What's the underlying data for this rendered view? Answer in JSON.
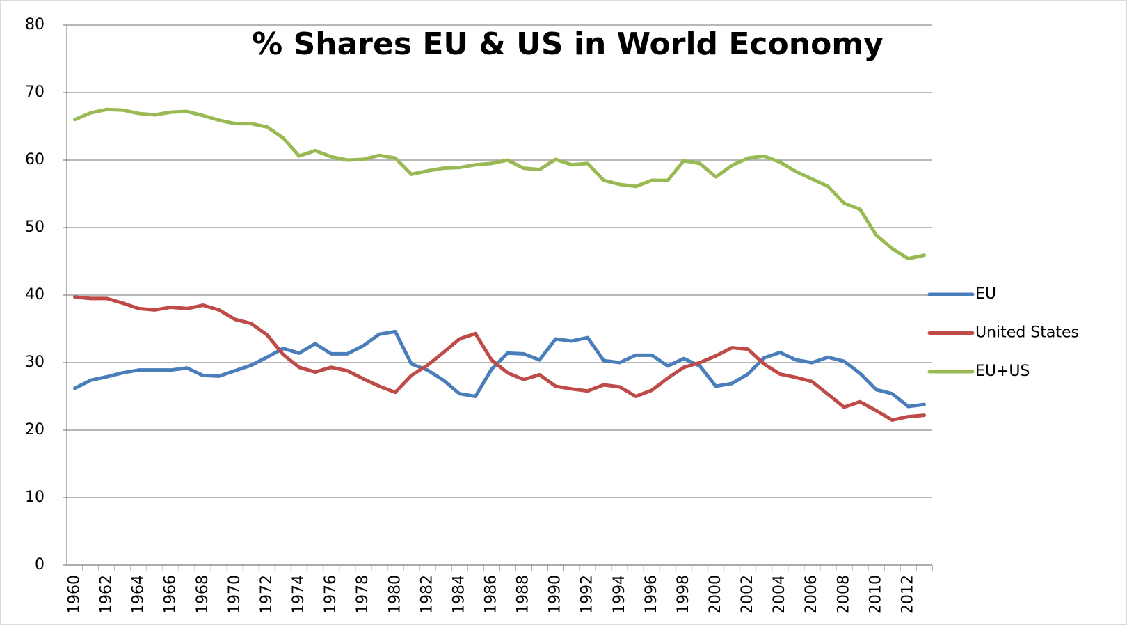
{
  "chart_data": {
    "type": "line",
    "title": "% Shares EU & US in World Economy",
    "categories": [
      "1960",
      null,
      "1962",
      null,
      "1964",
      null,
      "1966",
      null,
      "1968",
      null,
      "1970",
      null,
      "1972",
      null,
      "1974",
      null,
      "1976",
      null,
      "1978",
      null,
      "1980",
      null,
      "1982",
      null,
      "1984",
      null,
      "1986",
      null,
      "1988",
      null,
      "1990",
      null,
      "1992",
      null,
      "1994",
      null,
      "1996",
      null,
      "1998",
      null,
      "2000",
      null,
      "2002",
      null,
      "2004",
      null,
      "2006",
      null,
      "2008",
      null,
      "2010",
      null,
      "2012",
      null
    ],
    "series": [
      {
        "name": "EU",
        "color": "#4a7ebb",
        "values": [
          26.2,
          27.4,
          27.9,
          28.5,
          28.9,
          28.9,
          28.9,
          29.2,
          28.1,
          28.0,
          28.8,
          29.6,
          30.8,
          32.1,
          31.4,
          32.8,
          31.3,
          31.3,
          32.5,
          34.2,
          34.6,
          29.8,
          28.9,
          27.4,
          25.4,
          25.0,
          29.0,
          31.4,
          31.3,
          30.4,
          33.5,
          33.2,
          33.7,
          30.3,
          30.0,
          31.1,
          31.1,
          29.5,
          30.6,
          29.5,
          26.5,
          26.9,
          28.3,
          30.7,
          31.5,
          30.4,
          30.0,
          30.8,
          30.2,
          28.4,
          26.0,
          25.4,
          23.5,
          23.8
        ]
      },
      {
        "name": "United States",
        "color": "#be4b48",
        "values": [
          39.7,
          39.5,
          39.5,
          38.8,
          38.0,
          37.8,
          38.2,
          38.0,
          38.5,
          37.8,
          36.4,
          35.8,
          34.1,
          31.2,
          29.3,
          28.6,
          29.3,
          28.8,
          27.6,
          26.5,
          25.6,
          28.1,
          29.6,
          31.5,
          33.5,
          34.3,
          30.4,
          28.5,
          27.5,
          28.2,
          26.5,
          26.1,
          25.8,
          26.7,
          26.4,
          25.0,
          25.9,
          27.7,
          29.3,
          30.0,
          31.0,
          32.2,
          32.0,
          29.8,
          28.3,
          27.8,
          27.2,
          25.3,
          23.4,
          24.2,
          22.9,
          21.5,
          22.0,
          22.2
        ]
      },
      {
        "name": "EU+US",
        "color": "#98b954",
        "values": [
          66.0,
          67.0,
          67.5,
          67.4,
          66.9,
          66.7,
          67.1,
          67.2,
          66.6,
          65.9,
          65.4,
          65.4,
          64.9,
          63.3,
          60.6,
          61.4,
          60.5,
          60.0,
          60.1,
          60.7,
          60.3,
          57.9,
          58.4,
          58.8,
          58.9,
          59.3,
          59.5,
          60.0,
          58.8,
          58.6,
          60.1,
          59.3,
          59.5,
          57.0,
          56.4,
          56.1,
          57.0,
          57.0,
          59.9,
          59.5,
          57.5,
          59.2,
          60.3,
          60.6,
          59.7,
          58.3,
          57.2,
          56.1,
          53.6,
          52.7,
          48.9,
          46.9,
          45.4,
          45.9
        ]
      }
    ],
    "ylim": [
      0,
      80
    ],
    "yticks": [
      0,
      10,
      20,
      30,
      40,
      50,
      60,
      70,
      80
    ],
    "grid": true,
    "legend": "right"
  }
}
